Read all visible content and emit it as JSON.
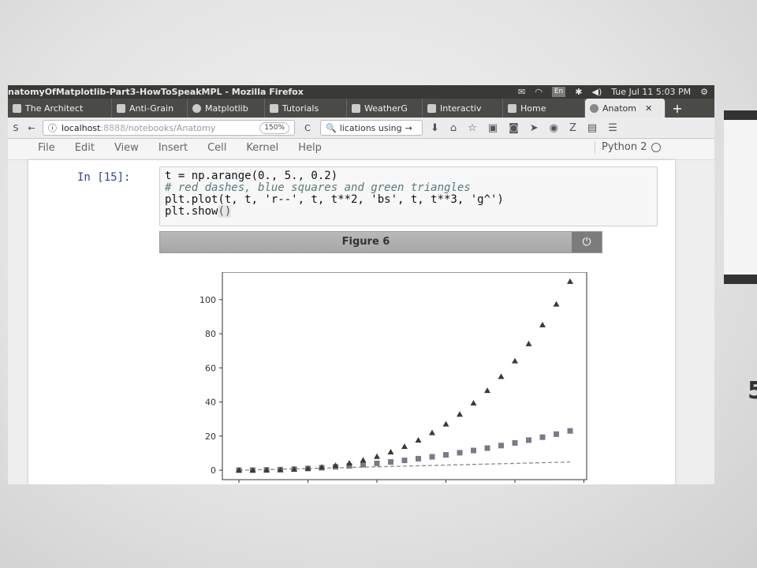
{
  "window": {
    "title": "natomyOfMatplotlib-Part3-HowToSpeakMPL - Mozilla Firefox",
    "input_indicator": "En",
    "clock": "Tue Jul 11  5:03 PM"
  },
  "tabs": [
    {
      "label": "The Architect"
    },
    {
      "label": "Anti-Grain"
    },
    {
      "label": "Matplotlib"
    },
    {
      "label": "Tutorials"
    },
    {
      "label": "WeatherG"
    },
    {
      "label": "Interactiv"
    },
    {
      "label": "Home"
    },
    {
      "label": "Anatom",
      "active": true
    }
  ],
  "navbar": {
    "url_host": "localhost",
    "url_port": ":8888",
    "url_path": "/notebooks/Anatomy",
    "zoom": "150%",
    "search_text": "lications using"
  },
  "menu": {
    "items": [
      "File",
      "Edit",
      "View",
      "Insert",
      "Cell",
      "Kernel",
      "Help"
    ],
    "kernel_name": "Python 2"
  },
  "cell": {
    "prompt": "In [15]:",
    "code_line1": "t = np.arange(0., 5., 0.2)",
    "code_comment": "# red dashes, blue squares and green triangles",
    "code_line3": "plt.plot(t, t, 'r--', t, t**2, 'bs', t, t**3, 'g^')",
    "code_line4_pre": "plt.show",
    "code_line4_paren": "()"
  },
  "figure": {
    "title": "Figure 6"
  },
  "chart_data": {
    "type": "line",
    "title": "",
    "xlabel": "",
    "ylabel": "",
    "x": [
      0,
      0.2,
      0.4,
      0.6,
      0.8,
      1.0,
      1.2,
      1.4,
      1.6,
      1.8,
      2.0,
      2.2,
      2.4,
      2.6,
      2.8,
      3.0,
      3.2,
      3.4,
      3.6,
      3.8,
      4.0,
      4.2,
      4.4,
      4.6,
      4.8
    ],
    "xlim": [
      -0.24,
      5.04
    ],
    "ylim": [
      -5.53,
      116.1
    ],
    "yticks": [
      "0",
      "20",
      "40",
      "60",
      "80",
      "100"
    ],
    "ytick_values": [
      0,
      20,
      40,
      60,
      80,
      100
    ],
    "series": [
      {
        "style": "r--",
        "color": "#8a8a8a",
        "marker": "dashed-line",
        "values": [
          0,
          0.2,
          0.4,
          0.6,
          0.8,
          1.0,
          1.2,
          1.4,
          1.6,
          1.8,
          2.0,
          2.2,
          2.4,
          2.6,
          2.8,
          3.0,
          3.2,
          3.4,
          3.6,
          3.8,
          4.0,
          4.2,
          4.4,
          4.6,
          4.8
        ]
      },
      {
        "style": "bs",
        "color": "#7a7a88",
        "marker": "square",
        "values": [
          0,
          0.04,
          0.16,
          0.36,
          0.64,
          1.0,
          1.44,
          1.96,
          2.56,
          3.24,
          4.0,
          4.84,
          5.76,
          6.76,
          7.84,
          9.0,
          10.24,
          11.56,
          12.96,
          14.44,
          16.0,
          17.64,
          19.36,
          21.16,
          23.04
        ]
      },
      {
        "style": "g^",
        "color": "#3a3a3a",
        "marker": "triangle",
        "values": [
          0,
          0.008,
          0.064,
          0.216,
          0.512,
          1.0,
          1.728,
          2.744,
          4.096,
          5.832,
          8.0,
          10.648,
          13.824,
          17.576,
          21.952,
          27.0,
          32.768,
          39.304,
          46.656,
          54.872,
          64.0,
          74.088,
          85.184,
          97.336,
          110.592
        ]
      }
    ]
  }
}
